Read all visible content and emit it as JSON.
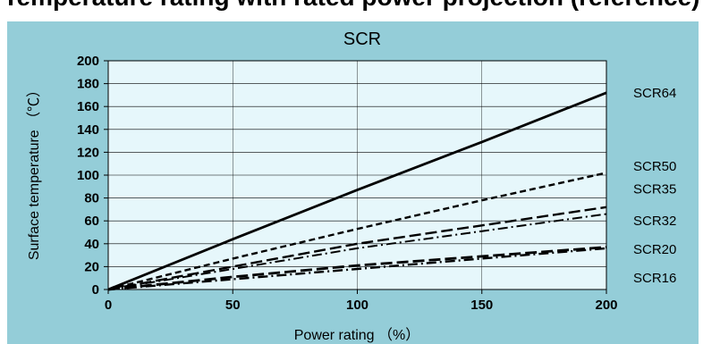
{
  "header": {
    "partial_title": "Temperature rating with rated power projection (reference)"
  },
  "chart_data": {
    "type": "line",
    "title": "SCR",
    "xlabel": "Power rating （%）",
    "ylabel": "Surface temperature （℃）",
    "xlim": [
      0,
      200
    ],
    "ylim": [
      0,
      200
    ],
    "x_ticks": [
      "0",
      "50",
      "100",
      "150",
      "200"
    ],
    "y_ticks": [
      "0",
      "20",
      "40",
      "60",
      "80",
      "100",
      "120",
      "140",
      "160",
      "180",
      "200"
    ],
    "grid": true,
    "legend": "right-labels",
    "series": [
      {
        "name": "SCR64",
        "style": "solid",
        "width": 2.8,
        "x": [
          0,
          50,
          100,
          150,
          200
        ],
        "y": [
          0,
          44,
          87,
          129,
          172
        ]
      },
      {
        "name": "SCR50",
        "style": "dash",
        "width": 2.4,
        "x": [
          0,
          50,
          100,
          150,
          200
        ],
        "y": [
          0,
          27,
          53,
          78,
          102
        ]
      },
      {
        "name": "SCR35",
        "style": "longdash",
        "width": 2.4,
        "x": [
          0,
          50,
          100,
          150,
          200
        ],
        "y": [
          0,
          20,
          40,
          56,
          72
        ]
      },
      {
        "name": "SCR32",
        "style": "dashdot",
        "width": 2.0,
        "x": [
          0,
          50,
          100,
          150,
          200
        ],
        "y": [
          0,
          18,
          36,
          51,
          66
        ]
      },
      {
        "name": "SCR20",
        "style": "longdash",
        "width": 2.8,
        "x": [
          0,
          50,
          100,
          150,
          200
        ],
        "y": [
          0,
          11,
          21,
          29,
          37
        ]
      },
      {
        "name": "SCR16",
        "style": "dashdot",
        "width": 2.4,
        "x": [
          0,
          50,
          100,
          150,
          200
        ],
        "y": [
          0,
          9,
          18,
          27,
          36
        ]
      }
    ],
    "series_label_y": [
      172,
      108,
      88,
      60,
      35,
      10
    ],
    "colors": {
      "panel": "#94cdd8",
      "plot": "#e6f7fb",
      "line": "#000000"
    }
  }
}
